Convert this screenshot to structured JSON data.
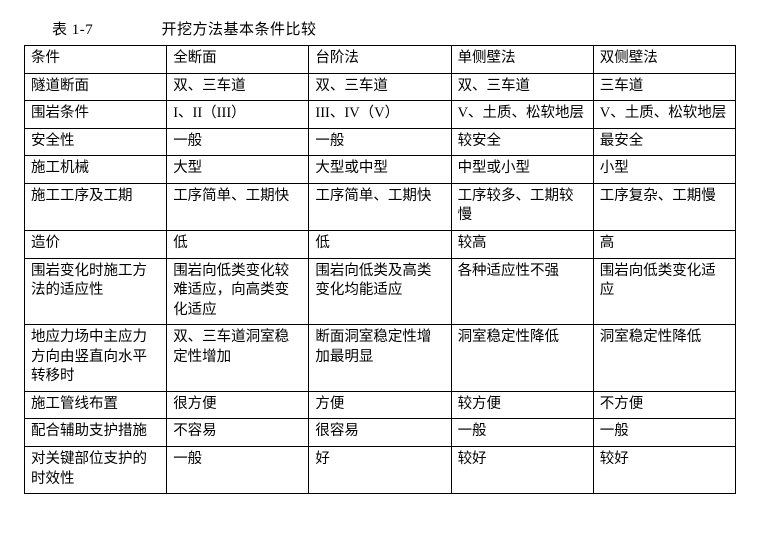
{
  "title": {
    "label": "表 1-7",
    "text": "开挖方法基本条件比较"
  },
  "table": {
    "type": "table",
    "columns": 5,
    "col_widths_pct": [
      20,
      20,
      20,
      20,
      20
    ],
    "border_color": "#000000",
    "background_color": "#ffffff",
    "text_color": "#000000",
    "font_size_pt": 11,
    "rows": [
      [
        "条件",
        "全断面",
        "台阶法",
        "单侧壁法",
        "双侧壁法"
      ],
      [
        "隧道断面",
        "双、三车道",
        "双、三车道",
        "双、三车道",
        "三车道"
      ],
      [
        "围岩条件",
        "I、II（III）",
        "III、IV（V）",
        "V、土质、松软地层",
        "V、土质、松软地层"
      ],
      [
        "安全性",
        "一般",
        "一般",
        "较安全",
        "最安全"
      ],
      [
        "施工机械",
        "大型",
        "大型或中型",
        "中型或小型",
        "小型"
      ],
      [
        "施工工序及工期",
        "工序简单、工期快",
        "工序简单、工期快",
        "工序较多、工期较慢",
        "工序复杂、工期慢"
      ],
      [
        "造价",
        "低",
        "低",
        "较高",
        "高"
      ],
      [
        "围岩变化时施工方法的适应性",
        "围岩向低类变化较难适应，向高类变化适应",
        "围岩向低类及高类变化均能适应",
        "各种适应性不强",
        "围岩向低类变化适应"
      ],
      [
        "地应力场中主应力方向由竖直向水平转移时",
        "双、三车道洞室稳定性增加",
        "断面洞室稳定性增加最明显",
        "洞室稳定性降低",
        "洞室稳定性降低"
      ],
      [
        "施工管线布置",
        "很方便",
        "方便",
        "较方便",
        "不方便"
      ],
      [
        "配合辅助支护措施",
        "不容易",
        "很容易",
        "一般",
        "一般"
      ],
      [
        "对关键部位支护的时效性",
        "一般",
        "好",
        "较好",
        "较好"
      ]
    ]
  }
}
